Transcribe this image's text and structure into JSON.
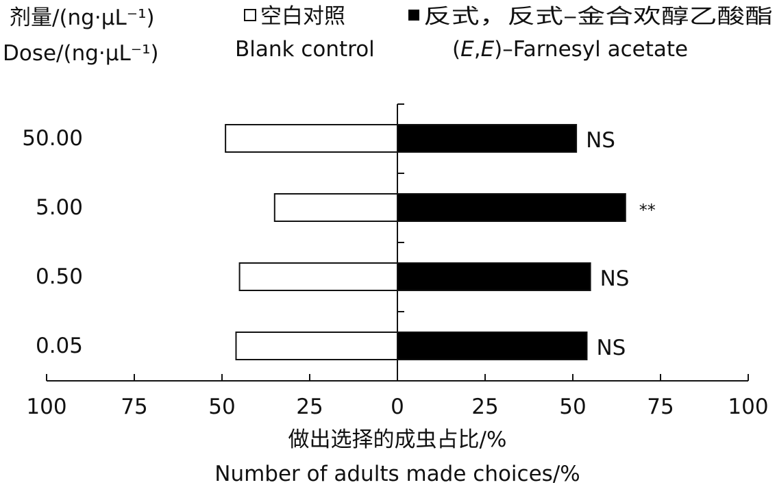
{
  "chart_data": {
    "type": "bar",
    "orientation": "horizontal-diverging",
    "dose_label_cn": "剂量/(ng·μL⁻¹)",
    "dose_label_en": "Dose/(ng·μL⁻¹)",
    "categories": [
      "50.00",
      "5.00",
      "0.50",
      "0.05"
    ],
    "series": [
      {
        "name_cn": "空白对照",
        "name_en": "Blank control",
        "direction": "left",
        "fill": "#ffffff",
        "values": [
          49,
          35,
          45,
          46
        ]
      },
      {
        "name_cn": "反式，反式–金合欢醇乙酸酯",
        "name_en": "(E,E)–Farnesyl acetate",
        "direction": "right",
        "fill": "#000000",
        "values": [
          51,
          65,
          55,
          54
        ]
      }
    ],
    "significance": [
      "NS",
      "**",
      "NS",
      "NS"
    ],
    "xlabel_cn": "做出选择的成虫占比/%",
    "xlabel_en": "Number of adults made choices/%",
    "xlim": [
      -100,
      100
    ],
    "xticks": [
      "100",
      "75",
      "50",
      "25",
      "0",
      "25",
      "50",
      "75",
      "100"
    ],
    "legend_position": "top",
    "grid": false
  }
}
